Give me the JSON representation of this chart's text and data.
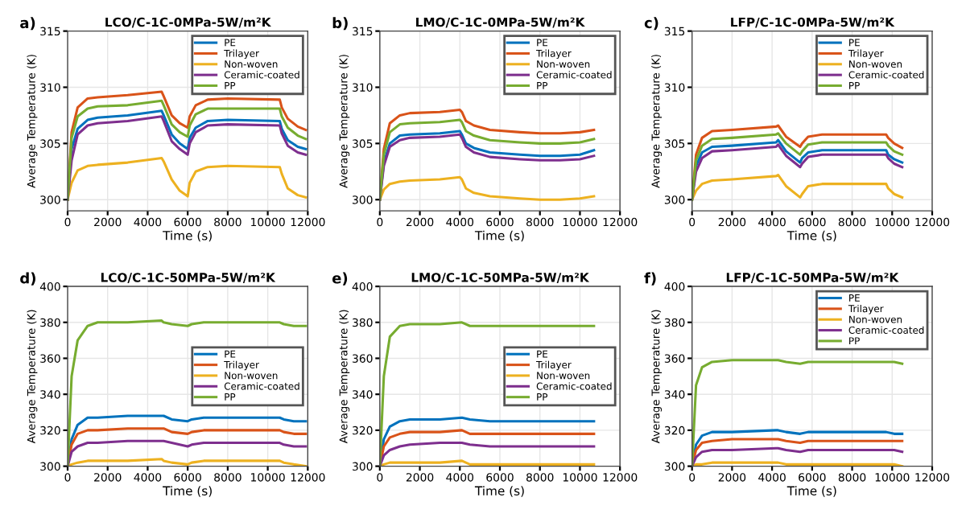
{
  "chart_data": [
    {
      "type": "line",
      "title": "LCO/C-1C-0MPa-5W/m²K",
      "annotations": [
        "a)"
      ],
      "xlabel": "Time (s)",
      "ylabel": "Average Temperature (K)",
      "xlim": [
        0,
        12000
      ],
      "xticks": [
        0,
        2000,
        4000,
        6000,
        8000,
        10000,
        12000
      ],
      "ylim": [
        299,
        315
      ],
      "yticks": [
        300,
        305,
        310,
        315
      ],
      "grid": true,
      "legend": "top right",
      "x": [
        0,
        200,
        500,
        1000,
        1500,
        3000,
        4700,
        4800,
        5200,
        5600,
        6000,
        6100,
        6400,
        7000,
        8000,
        10600,
        10700,
        11000,
        11500,
        11900
      ],
      "series": [
        {
          "name": "PE",
          "color": "#0072bd",
          "values": [
            300,
            304.5,
            306.3,
            307.1,
            307.3,
            307.5,
            307.9,
            307.5,
            305.8,
            305,
            304.5,
            305.5,
            306.4,
            307.0,
            307.1,
            307.0,
            306.3,
            305.3,
            304.7,
            304.5
          ]
        },
        {
          "name": "Trilayer",
          "color": "#d95319",
          "values": [
            300,
            306,
            308.2,
            309.0,
            309.1,
            309.3,
            309.6,
            309.2,
            307.5,
            306.8,
            306.4,
            307.4,
            308.4,
            308.9,
            309.0,
            308.9,
            308.2,
            307.2,
            306.5,
            306.2
          ]
        },
        {
          "name": "Non-woven",
          "color": "#edb120",
          "values": [
            300,
            301.5,
            302.6,
            303.0,
            303.1,
            303.3,
            303.7,
            303.4,
            301.8,
            300.8,
            300.3,
            301.5,
            302.5,
            302.9,
            303.0,
            302.9,
            302.3,
            301.0,
            300.4,
            300.2
          ]
        },
        {
          "name": "Ceramic-coated",
          "color": "#7e2f8e",
          "values": [
            300,
            303.5,
            305.8,
            306.6,
            306.8,
            307.0,
            307.4,
            307.0,
            305.2,
            304.5,
            304.0,
            305.0,
            306.0,
            306.6,
            306.7,
            306.6,
            305.9,
            304.8,
            304.2,
            304.0
          ]
        },
        {
          "name": "PP",
          "color": "#77ac30",
          "values": [
            300,
            305.5,
            307.4,
            308.1,
            308.3,
            308.4,
            308.8,
            308.4,
            306.7,
            306.0,
            305.6,
            306.6,
            307.6,
            308.1,
            308.1,
            308.1,
            307.4,
            306.4,
            305.7,
            305.4
          ]
        }
      ]
    },
    {
      "type": "line",
      "title": "LMO/C-1C-0MPa-5W/m²K",
      "annotations": [
        "b)"
      ],
      "xlabel": "Time (s)",
      "ylabel": "Average Temperature (K)",
      "xlim": [
        0,
        12000
      ],
      "xticks": [
        0,
        2000,
        4000,
        6000,
        8000,
        10000,
        12000
      ],
      "ylim": [
        299,
        315
      ],
      "yticks": [
        300,
        305,
        310,
        315
      ],
      "grid": true,
      "legend": "top right",
      "x": [
        0,
        200,
        500,
        1000,
        1500,
        3000,
        4000,
        4100,
        4300,
        4700,
        5500,
        7000,
        8000,
        9000,
        10000,
        10700
      ],
      "series": [
        {
          "name": "PE",
          "color": "#0072bd",
          "values": [
            300,
            303.3,
            305.0,
            305.7,
            305.8,
            305.9,
            306.1,
            305.8,
            305.0,
            304.6,
            304.2,
            304.0,
            303.9,
            303.9,
            304.0,
            304.4
          ]
        },
        {
          "name": "Trilayer",
          "color": "#d95319",
          "values": [
            300,
            304.5,
            306.8,
            307.5,
            307.7,
            307.8,
            308.0,
            307.8,
            307.0,
            306.6,
            306.2,
            306.0,
            305.9,
            305.9,
            306.0,
            306.2
          ]
        },
        {
          "name": "Non-woven",
          "color": "#edb120",
          "values": [
            300,
            300.9,
            301.4,
            301.6,
            301.7,
            301.8,
            302.0,
            301.8,
            301.0,
            300.6,
            300.3,
            300.1,
            300.0,
            300.0,
            300.1,
            300.3
          ]
        },
        {
          "name": "Ceramic-coated",
          "color": "#7e2f8e",
          "values": [
            300,
            303,
            304.7,
            305.3,
            305.5,
            305.6,
            305.8,
            305.5,
            304.7,
            304.2,
            303.8,
            303.6,
            303.5,
            303.5,
            303.6,
            303.9
          ]
        },
        {
          "name": "PP",
          "color": "#77ac30",
          "values": [
            300,
            304,
            306.0,
            306.7,
            306.8,
            306.9,
            307.1,
            306.9,
            306.1,
            305.7,
            305.3,
            305.1,
            305.0,
            305.0,
            305.1,
            305.4
          ]
        }
      ]
    },
    {
      "type": "line",
      "title": "LFP/C-1C-0MPa-5W/m²K",
      "annotations": [
        "c)"
      ],
      "xlabel": "Time (s)",
      "ylabel": "Average Temperature (K)",
      "xlim": [
        0,
        12000
      ],
      "xticks": [
        0,
        2000,
        4000,
        6000,
        8000,
        10000,
        12000
      ],
      "ylim": [
        299,
        315
      ],
      "yticks": [
        300,
        305,
        310,
        315
      ],
      "grid": true,
      "legend": "top right",
      "x": [
        0,
        200,
        500,
        1000,
        2000,
        4200,
        4300,
        4700,
        5400,
        5500,
        5800,
        6500,
        8000,
        9700,
        9800,
        10100,
        10500
      ],
      "series": [
        {
          "name": "PE",
          "color": "#0072bd",
          "values": [
            300,
            303,
            304.2,
            304.7,
            304.8,
            305.1,
            305.3,
            304.3,
            303.3,
            303.7,
            304.2,
            304.4,
            304.4,
            304.4,
            304.0,
            303.6,
            303.3
          ]
        },
        {
          "name": "Trilayer",
          "color": "#d95319",
          "values": [
            300,
            304,
            305.5,
            306.1,
            306.2,
            306.5,
            306.6,
            305.6,
            304.7,
            305.0,
            305.6,
            305.8,
            305.8,
            305.8,
            305.5,
            305.0,
            304.6
          ]
        },
        {
          "name": "Non-woven",
          "color": "#edb120",
          "values": [
            300,
            300.8,
            301.4,
            301.7,
            301.8,
            302.1,
            302.2,
            301.2,
            300.2,
            300.5,
            301.2,
            301.4,
            301.4,
            301.4,
            301.0,
            300.5,
            300.2
          ]
        },
        {
          "name": "Ceramic-coated",
          "color": "#7e2f8e",
          "values": [
            300,
            302.5,
            303.7,
            304.3,
            304.4,
            304.7,
            304.9,
            303.9,
            302.9,
            303.2,
            303.8,
            304.0,
            304.0,
            304.0,
            303.7,
            303.2,
            302.9
          ]
        },
        {
          "name": "PP",
          "color": "#77ac30",
          "values": [
            300,
            303.5,
            304.8,
            305.4,
            305.5,
            305.8,
            305.9,
            305.0,
            304.0,
            304.3,
            304.9,
            305.1,
            305.1,
            305.1,
            304.8,
            304.3,
            304.0
          ]
        }
      ]
    },
    {
      "type": "line",
      "title": "LCO/C-1C-50MPa-5W/m²K",
      "annotations": [
        "d)"
      ],
      "xlabel": "Time (s)",
      "ylabel": "Average Temperature (K)",
      "xlim": [
        0,
        12000
      ],
      "xticks": [
        0,
        2000,
        4000,
        6000,
        8000,
        10000,
        12000
      ],
      "ylim": [
        300,
        400
      ],
      "yticks": [
        300,
        320,
        340,
        360,
        380,
        400
      ],
      "grid": true,
      "legend": "right",
      "x": [
        0,
        200,
        500,
        1000,
        1500,
        3000,
        4700,
        4800,
        5200,
        6000,
        6200,
        6800,
        8000,
        10600,
        10800,
        11300,
        11900
      ],
      "series": [
        {
          "name": "PE",
          "color": "#0072bd",
          "values": [
            300,
            315,
            323,
            327,
            327,
            328,
            328,
            328,
            326,
            325,
            326,
            327,
            327,
            327,
            326,
            325,
            325
          ]
        },
        {
          "name": "Trilayer",
          "color": "#d95319",
          "values": [
            300,
            312,
            318,
            320,
            320,
            321,
            321,
            321,
            319,
            318,
            319,
            320,
            320,
            320,
            319,
            318,
            318
          ]
        },
        {
          "name": "Non-woven",
          "color": "#edb120",
          "values": [
            300,
            301,
            302,
            303,
            303,
            303,
            304,
            303,
            302,
            301,
            302,
            303,
            303,
            303,
            302,
            301,
            300
          ]
        },
        {
          "name": "Ceramic-coated",
          "color": "#7e2f8e",
          "values": [
            300,
            308,
            311,
            313,
            313,
            314,
            314,
            314,
            313,
            311,
            312,
            313,
            313,
            313,
            312,
            311,
            311
          ]
        },
        {
          "name": "PP",
          "color": "#77ac30",
          "values": [
            300,
            350,
            370,
            378,
            380,
            380,
            381,
            380,
            379,
            378,
            379,
            380,
            380,
            380,
            379,
            378,
            378
          ]
        }
      ]
    },
    {
      "type": "line",
      "title": "LMO/C-1C-50MPa-5W/m²K",
      "annotations": [
        "e)"
      ],
      "xlabel": "Time (s)",
      "ylabel": "Average Temperature (K)",
      "xlim": [
        0,
        12000
      ],
      "xticks": [
        0,
        2000,
        4000,
        6000,
        8000,
        10000,
        12000
      ],
      "ylim": [
        300,
        400
      ],
      "yticks": [
        300,
        320,
        340,
        360,
        380,
        400
      ],
      "grid": true,
      "legend": "right",
      "x": [
        0,
        200,
        500,
        1000,
        1500,
        3000,
        4100,
        4500,
        5500,
        8000,
        10700
      ],
      "series": [
        {
          "name": "PE",
          "color": "#0072bd",
          "values": [
            300,
            315,
            322,
            325,
            326,
            326,
            327,
            326,
            325,
            325,
            325
          ]
        },
        {
          "name": "Trilayer",
          "color": "#d95319",
          "values": [
            300,
            311,
            316,
            318,
            319,
            319,
            320,
            318,
            318,
            318,
            318
          ]
        },
        {
          "name": "Non-woven",
          "color": "#edb120",
          "values": [
            300,
            301,
            302,
            302,
            302,
            302,
            303,
            301,
            301,
            301,
            301
          ]
        },
        {
          "name": "Ceramic-coated",
          "color": "#7e2f8e",
          "values": [
            300,
            306,
            309,
            311,
            312,
            313,
            313,
            312,
            311,
            311,
            311
          ]
        },
        {
          "name": "PP",
          "color": "#77ac30",
          "values": [
            300,
            350,
            372,
            378,
            379,
            379,
            380,
            378,
            378,
            378,
            378
          ]
        }
      ]
    },
    {
      "type": "line",
      "title": "LFP/C-1C-50MPa-5W/m²K",
      "annotations": [
        "f)"
      ],
      "xlabel": "Time (s)",
      "ylabel": "Average Temperature (K)",
      "xlim": [
        0,
        12000
      ],
      "xticks": [
        0,
        2000,
        4000,
        6000,
        8000,
        10000,
        12000
      ],
      "ylim": [
        300,
        400
      ],
      "yticks": [
        300,
        320,
        340,
        360,
        380,
        400
      ],
      "grid": true,
      "legend": "top right",
      "x": [
        0,
        200,
        500,
        1000,
        2000,
        4200,
        4300,
        4700,
        5400,
        5800,
        6500,
        9700,
        10100,
        10500
      ],
      "series": [
        {
          "name": "PE",
          "color": "#0072bd",
          "values": [
            300,
            312,
            317,
            319,
            319,
            320,
            320,
            319,
            318,
            319,
            319,
            319,
            318,
            318
          ]
        },
        {
          "name": "Trilayer",
          "color": "#d95319",
          "values": [
            300,
            309,
            313,
            314,
            315,
            315,
            315,
            314,
            313,
            314,
            314,
            314,
            314,
            314
          ]
        },
        {
          "name": "Non-woven",
          "color": "#edb120",
          "values": [
            300,
            301,
            301,
            302,
            302,
            302,
            302,
            301,
            301,
            301,
            301,
            301,
            301,
            300
          ]
        },
        {
          "name": "Ceramic-coated",
          "color": "#7e2f8e",
          "values": [
            300,
            305,
            308,
            309,
            309,
            310,
            310,
            309,
            308,
            309,
            309,
            309,
            309,
            308
          ]
        },
        {
          "name": "PP",
          "color": "#77ac30",
          "values": [
            300,
            345,
            355,
            358,
            359,
            359,
            359,
            358,
            357,
            358,
            358,
            358,
            358,
            357
          ]
        }
      ]
    }
  ]
}
